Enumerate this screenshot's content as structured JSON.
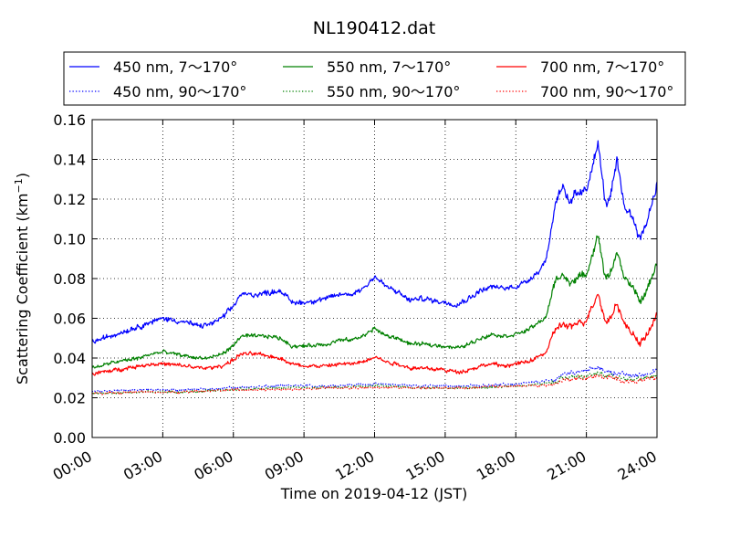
{
  "chart_data": {
    "type": "line",
    "title": "NL190412.dat",
    "xlabel": "Time on 2019-04-12 (JST)",
    "ylabel": "Scattering Coefficient (km",
    "ylabel_sup": "−1",
    "ylabel_close": ")",
    "x_unit": "hours",
    "xlim": [
      0,
      24
    ],
    "ylim": [
      0,
      0.16
    ],
    "grid": true,
    "legend_position": "top, above plot",
    "x_ticks": [
      0,
      3,
      6,
      9,
      12,
      15,
      18,
      21,
      24
    ],
    "x_tick_labels": [
      "00:00",
      "03:00",
      "06:00",
      "09:00",
      "12:00",
      "15:00",
      "18:00",
      "21:00",
      "24:00"
    ],
    "y_ticks": [
      0,
      0.02,
      0.04,
      0.06,
      0.08,
      0.1,
      0.12,
      0.14,
      0.16
    ],
    "y_tick_labels": [
      "0.00",
      "0.02",
      "0.04",
      "0.06",
      "0.08",
      "0.10",
      "0.12",
      "0.14",
      "0.16"
    ],
    "series": [
      {
        "name": "450 nm, 7～170°",
        "color": "#0000ff",
        "style": "solid",
        "x": [
          0,
          1,
          2,
          2.5,
          3,
          4,
          4.5,
          5,
          5.5,
          6,
          6.3,
          7,
          7.5,
          8,
          8.5,
          9,
          10,
          10.5,
          11,
          11.5,
          12,
          12.5,
          13,
          13.5,
          14,
          15,
          15.5,
          16,
          16.5,
          17,
          17.5,
          18,
          18.5,
          19,
          19.3,
          19.7,
          20,
          20.3,
          20.5,
          21,
          21.2,
          21.5,
          21.8,
          22,
          22.3,
          22.6,
          23,
          23.3,
          23.6,
          24
        ],
        "y": [
          0.048,
          0.052,
          0.056,
          0.058,
          0.06,
          0.058,
          0.056,
          0.057,
          0.06,
          0.066,
          0.072,
          0.072,
          0.073,
          0.074,
          0.068,
          0.068,
          0.07,
          0.072,
          0.072,
          0.075,
          0.081,
          0.076,
          0.073,
          0.069,
          0.07,
          0.068,
          0.067,
          0.07,
          0.074,
          0.076,
          0.075,
          0.076,
          0.079,
          0.084,
          0.09,
          0.119,
          0.128,
          0.116,
          0.122,
          0.124,
          0.135,
          0.148,
          0.118,
          0.12,
          0.139,
          0.117,
          0.11,
          0.1,
          0.11,
          0.128
        ]
      },
      {
        "name": "550 nm, 7～170°",
        "color": "#008000",
        "style": "solid",
        "x": [
          0,
          1,
          2,
          2.5,
          3,
          4,
          4.5,
          5,
          5.5,
          6,
          6.3,
          7,
          7.5,
          8,
          8.5,
          9,
          10,
          10.5,
          11,
          11.5,
          12,
          12.5,
          13,
          13.5,
          14,
          15,
          15.5,
          16,
          16.5,
          17,
          17.5,
          18,
          18.5,
          19,
          19.3,
          19.7,
          20,
          20.3,
          20.5,
          21,
          21.2,
          21.5,
          21.8,
          22,
          22.3,
          22.6,
          23,
          23.3,
          23.6,
          24
        ],
        "y": [
          0.035,
          0.038,
          0.04,
          0.042,
          0.043,
          0.041,
          0.04,
          0.04,
          0.042,
          0.046,
          0.051,
          0.051,
          0.051,
          0.05,
          0.046,
          0.046,
          0.047,
          0.049,
          0.049,
          0.051,
          0.055,
          0.051,
          0.05,
          0.047,
          0.047,
          0.046,
          0.045,
          0.047,
          0.05,
          0.052,
          0.051,
          0.052,
          0.054,
          0.058,
          0.061,
          0.08,
          0.082,
          0.077,
          0.08,
          0.082,
          0.09,
          0.102,
          0.08,
          0.082,
          0.094,
          0.08,
          0.075,
          0.068,
          0.075,
          0.088
        ]
      },
      {
        "name": "700 nm, 7～170°",
        "color": "#ff0000",
        "style": "solid",
        "x": [
          0,
          1,
          2,
          2.5,
          3,
          4,
          4.5,
          5,
          5.5,
          6,
          6.3,
          7,
          7.5,
          8,
          8.5,
          9,
          10,
          10.5,
          11,
          11.5,
          12,
          12.5,
          13,
          13.5,
          14,
          15,
          15.5,
          16,
          16.5,
          17,
          17.5,
          18,
          18.5,
          19,
          19.3,
          19.7,
          20,
          20.3,
          20.5,
          21,
          21.2,
          21.5,
          21.8,
          22,
          22.3,
          22.6,
          23,
          23.3,
          23.6,
          24
        ],
        "y": [
          0.032,
          0.034,
          0.036,
          0.037,
          0.037,
          0.036,
          0.035,
          0.035,
          0.036,
          0.039,
          0.042,
          0.042,
          0.041,
          0.04,
          0.037,
          0.036,
          0.036,
          0.037,
          0.037,
          0.038,
          0.041,
          0.038,
          0.037,
          0.035,
          0.035,
          0.034,
          0.033,
          0.034,
          0.036,
          0.037,
          0.036,
          0.037,
          0.038,
          0.041,
          0.043,
          0.055,
          0.057,
          0.055,
          0.057,
          0.059,
          0.065,
          0.073,
          0.058,
          0.06,
          0.068,
          0.057,
          0.052,
          0.047,
          0.052,
          0.062
        ]
      },
      {
        "name": "450 nm, 90～170°",
        "color": "#0000ff",
        "style": "dotted",
        "x": [
          0,
          2,
          4,
          6,
          8,
          10,
          12,
          14,
          16,
          18,
          19,
          19.7,
          20,
          21,
          21.5,
          22,
          23,
          23.5,
          24
        ],
        "y": [
          0.023,
          0.024,
          0.024,
          0.025,
          0.026,
          0.026,
          0.027,
          0.026,
          0.026,
          0.027,
          0.028,
          0.029,
          0.032,
          0.034,
          0.035,
          0.033,
          0.031,
          0.032,
          0.034
        ]
      },
      {
        "name": "550 nm, 90～170°",
        "color": "#008000",
        "style": "dotted",
        "x": [
          0,
          2,
          4,
          6,
          8,
          10,
          12,
          14,
          16,
          18,
          19,
          19.7,
          20,
          21,
          21.5,
          22,
          23,
          23.5,
          24
        ],
        "y": [
          0.022,
          0.023,
          0.023,
          0.024,
          0.025,
          0.025,
          0.026,
          0.025,
          0.025,
          0.026,
          0.027,
          0.028,
          0.03,
          0.031,
          0.032,
          0.031,
          0.029,
          0.03,
          0.031
        ]
      },
      {
        "name": "700 nm, 90～170°",
        "color": "#ff0000",
        "style": "dotted",
        "x": [
          0,
          2,
          4,
          6,
          8,
          10,
          12,
          14,
          16,
          18,
          19,
          19.7,
          20,
          21,
          21.5,
          22,
          23,
          23.5,
          24
        ],
        "y": [
          0.022,
          0.023,
          0.023,
          0.024,
          0.024,
          0.025,
          0.025,
          0.025,
          0.025,
          0.026,
          0.026,
          0.027,
          0.029,
          0.03,
          0.031,
          0.03,
          0.028,
          0.029,
          0.03
        ]
      }
    ]
  }
}
